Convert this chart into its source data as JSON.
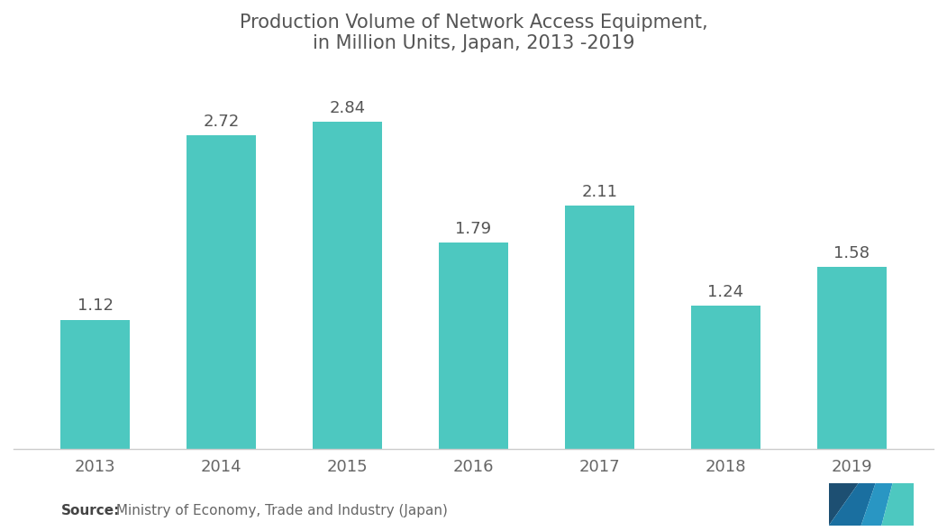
{
  "title": "Production Volume of Network Access Equipment,\nin Million Units, Japan, 2013 -2019",
  "categories": [
    "2013",
    "2014",
    "2015",
    "2016",
    "2017",
    "2018",
    "2019"
  ],
  "values": [
    1.12,
    2.72,
    2.84,
    1.79,
    2.11,
    1.24,
    1.58
  ],
  "bar_color": "#4DC8C0",
  "background_color": "#FFFFFF",
  "title_fontsize": 15,
  "label_fontsize": 13,
  "tick_fontsize": 13,
  "source_bold": "Source:",
  "source_rest": " Ministry of Economy, Trade and Industry (Japan)",
  "ylim": [
    0,
    3.3
  ],
  "title_color": "#555555",
  "tick_color": "#666666",
  "value_label_color": "#555555",
  "source_fontsize": 11,
  "logo_dark": "#1a5276",
  "logo_mid": "#1a78a0",
  "logo_light": "#4DC8C0"
}
